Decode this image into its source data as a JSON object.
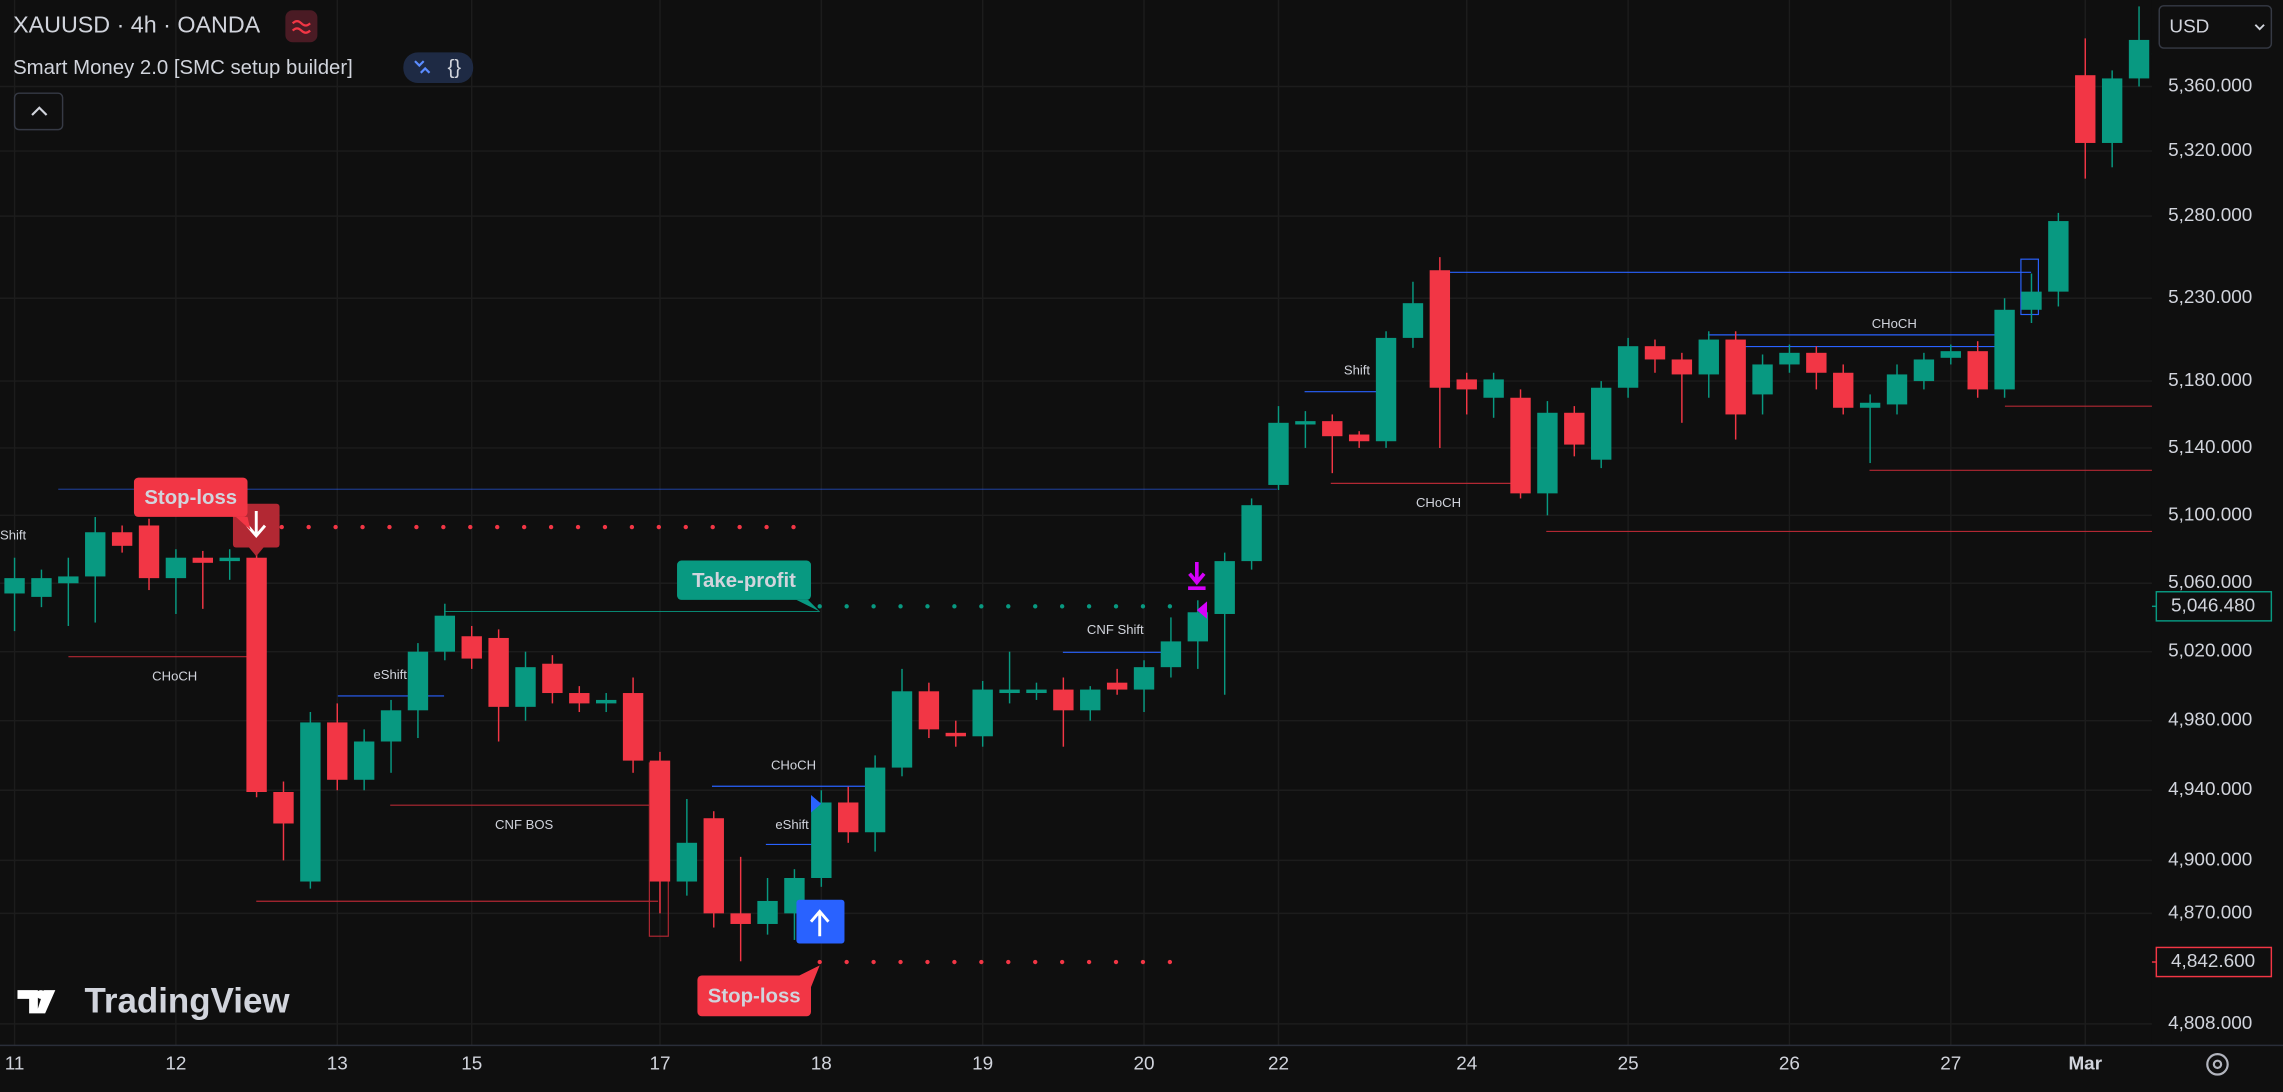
{
  "chart_data": {
    "type": "candlestick",
    "title": "XAUUSD · 4h · OANDA",
    "subtitle": "Smart Money 2.0 [SMC setup builder]",
    "currency": "USD",
    "watermark": "TradingView",
    "up_color": "#089981",
    "down_color": "#f23645",
    "log_scale": true,
    "grid": true,
    "categories": [
      "11",
      null,
      null,
      null,
      null,
      null,
      "12",
      null,
      null,
      null,
      null,
      null,
      "13",
      null,
      null,
      null,
      null,
      "15",
      null,
      null,
      null,
      null,
      null,
      null,
      "17",
      null,
      null,
      null,
      null,
      null,
      "18",
      null,
      null,
      null,
      null,
      null,
      "19",
      null,
      null,
      null,
      null,
      null,
      "20",
      null,
      null,
      null,
      null,
      "22",
      null,
      null,
      null,
      null,
      null,
      null,
      "24",
      null,
      null,
      null,
      null,
      null,
      "25",
      null,
      null,
      null,
      null,
      null,
      "26",
      null,
      null,
      null,
      null,
      null,
      "27",
      null,
      null,
      null,
      null,
      "Mar",
      null,
      null
    ],
    "open": [
      5054,
      5052,
      5060,
      5064,
      5090,
      5094,
      5063,
      5075,
      5073,
      5075,
      4939,
      4888,
      4979,
      4946,
      4968,
      4986,
      5020,
      5029,
      5028,
      4988,
      5013,
      4996,
      4990,
      4996,
      4957,
      4888,
      4924,
      4870,
      4864,
      4870,
      4890,
      4933,
      4916,
      4953,
      4997,
      4973,
      4971,
      4996,
      4996,
      4998,
      4986,
      5002,
      4998,
      5011,
      5026,
      5042,
      5073,
      5118,
      5154,
      5156,
      5148,
      5144,
      5206,
      5247,
      5181,
      5170,
      5170,
      5113,
      5161,
      5133,
      5176,
      5201,
      5193,
      5184,
      5205,
      5172,
      5190,
      5197,
      5185,
      5164,
      5166,
      5180,
      5194,
      5198,
      5175,
      5223,
      5234,
      5367,
      5325,
      5365
    ],
    "high": [
      5075,
      5068,
      5075,
      5099,
      5094,
      5098,
      5080,
      5079,
      5080,
      5080,
      4945,
      4985,
      4990,
      4975,
      4992,
      5025,
      5048,
      5035,
      5033,
      5020,
      5018,
      5000,
      4996,
      5005,
      4962,
      4935,
      4928,
      4902,
      4890,
      4895,
      4940,
      4942,
      4960,
      5010,
      5002,
      4980,
      5003,
      5020,
      5002,
      5005,
      5000,
      5010,
      5015,
      5040,
      5050,
      5078,
      5110,
      5165,
      5162,
      5160,
      5150,
      5210,
      5240,
      5255,
      5185,
      5185,
      5175,
      5168,
      5165,
      5180,
      5206,
      5205,
      5197,
      5210,
      5210,
      5196,
      5202,
      5201,
      5190,
      5172,
      5190,
      5197,
      5202,
      5204,
      5230,
      5245,
      5282,
      5390,
      5370,
      5410
    ],
    "low": [
      5032,
      5046,
      5035,
      5037,
      5078,
      5056,
      5042,
      5045,
      5062,
      4936,
      4900,
      4884,
      4940,
      4940,
      4950,
      4970,
      5015,
      5010,
      4968,
      4980,
      4990,
      4985,
      4985,
      4950,
      4870,
      4880,
      4862,
      4843,
      4858,
      4855,
      4885,
      4910,
      4905,
      4948,
      4970,
      4965,
      4965,
      4990,
      4992,
      4965,
      4980,
      4995,
      4985,
      5005,
      5010,
      4995,
      5068,
      5115,
      5140,
      5125,
      5140,
      5140,
      5200,
      5140,
      5160,
      5158,
      5110,
      5100,
      5135,
      5128,
      5170,
      5185,
      5155,
      5170,
      5145,
      5160,
      5185,
      5175,
      5160,
      5131,
      5160,
      5175,
      5190,
      5170,
      5170,
      5215,
      5225,
      5303,
      5310,
      5360
    ],
    "close": [
      5063,
      5063,
      5064,
      5090,
      5082,
      5063,
      5075,
      5072,
      5075,
      4939,
      4921,
      4979,
      4946,
      4968,
      4986,
      5020,
      5041,
      5016,
      4988,
      5011,
      4996,
      4990,
      4992,
      4957,
      4888,
      4910,
      4870,
      4864,
      4877,
      4890,
      4933,
      4916,
      4953,
      4997,
      4975,
      4971,
      4998,
      4998,
      4998,
      4986,
      4998,
      4998,
      5011,
      5026,
      5043,
      5073,
      5106,
      5155,
      5156,
      5147,
      5144,
      5206,
      5227,
      5176,
      5175,
      5181,
      5113,
      5161,
      5142,
      5176,
      5201,
      5193,
      5184,
      5205,
      5160,
      5190,
      5197,
      5185,
      5164,
      5167,
      5184,
      5193,
      5198,
      5175,
      5223,
      5234,
      5277,
      5325,
      5365,
      5389
    ],
    "ylim": [
      4796,
      5414
    ],
    "yticks": [
      {
        "value": 4808,
        "label": "4,808.000"
      },
      {
        "value": 4870,
        "label": "4,870.000"
      },
      {
        "value": 4900,
        "label": "4,900.000"
      },
      {
        "value": 4940,
        "label": "4,940.000"
      },
      {
        "value": 4980,
        "label": "4,980.000"
      },
      {
        "value": 5020,
        "label": "5,020.000"
      },
      {
        "value": 5060,
        "label": "5,060.000"
      },
      {
        "value": 5100,
        "label": "5,100.000"
      },
      {
        "value": 5140,
        "label": "5,140.000"
      },
      {
        "value": 5180,
        "label": "5,180.000"
      },
      {
        "value": 5230,
        "label": "5,230.000"
      },
      {
        "value": 5280,
        "label": "5,280.000"
      },
      {
        "value": 5320,
        "label": "5,320.000"
      },
      {
        "value": 5360,
        "label": "5,360.000"
      }
    ],
    "price_labels": [
      {
        "value": 5046.48,
        "label": "5,046.480",
        "color": "#089981"
      },
      {
        "value": 4842.6,
        "label": "4,842.600",
        "color": "#f23645"
      }
    ],
    "annotations": [
      {
        "text": "Stop-loss",
        "color": "#f23645"
      },
      {
        "text": "Take-profit",
        "color": "#089981"
      },
      {
        "text": "Stop-loss",
        "color": "#f23645"
      },
      {
        "text": "Shift",
        "color": "#2962ff"
      },
      {
        "text": "CHoCH",
        "color": "#b22833"
      },
      {
        "text": "eShift",
        "color": "#2962ff"
      },
      {
        "text": "CNF BOS",
        "color": "#b22833"
      },
      {
        "text": "CHoCH",
        "color": "#2962ff"
      },
      {
        "text": "eShift",
        "color": "#2962ff"
      },
      {
        "text": "CNF Shift",
        "color": "#2962ff"
      },
      {
        "text": "Shift",
        "color": "#2962ff"
      },
      {
        "text": "CHoCH",
        "color": "#b22833"
      },
      {
        "text": "CHoCH",
        "color": "#2962ff"
      }
    ]
  }
}
